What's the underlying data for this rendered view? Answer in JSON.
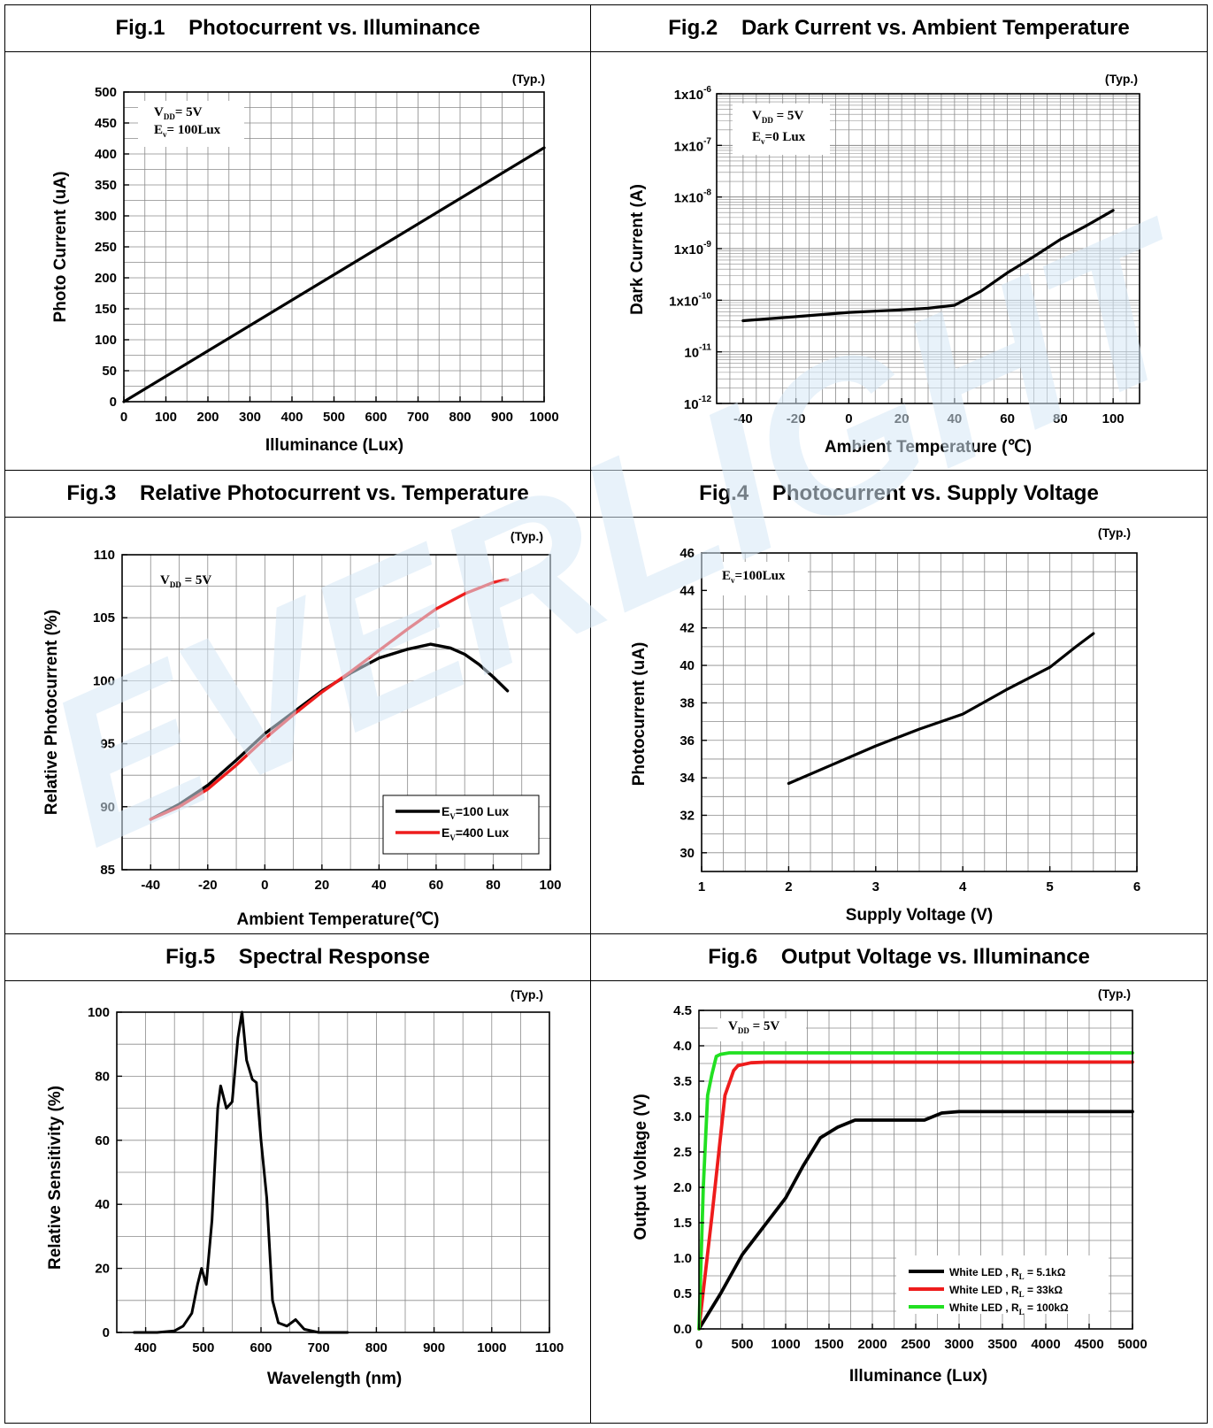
{
  "figures": [
    {
      "id": "fig1",
      "label": "Fig.1",
      "title": "Photocurrent vs. Illuminance"
    },
    {
      "id": "fig2",
      "label": "Fig.2",
      "title": "Dark Current vs. Ambient Temperature"
    },
    {
      "id": "fig3",
      "label": "Fig.3",
      "title": "Relative Photocurrent vs. Temperature"
    },
    {
      "id": "fig4",
      "label": "Fig.4",
      "title": "Photocurrent vs. Supply Voltage"
    },
    {
      "id": "fig5",
      "label": "Fig.5",
      "title": "Spectral Response"
    },
    {
      "id": "fig6",
      "label": "Fig.6",
      "title": "Output Voltage vs. Illuminance"
    }
  ],
  "typ_label": "(Typ.)",
  "watermark": "EVERLIGHT",
  "watermark_color": "#d6e8f5",
  "chart_data": [
    {
      "type": "line",
      "title": "Fig.1 Photocurrent vs. Illuminance",
      "xlabel": "Illuminance (Lux)",
      "ylabel": "Photo Current (uA)",
      "xlim": [
        0,
        1000
      ],
      "ylim": [
        0,
        500
      ],
      "xticks": [
        "0",
        "100",
        "200",
        "300",
        "400",
        "500",
        "600",
        "700",
        "800",
        "900",
        "1000"
      ],
      "yticks": [
        "0",
        "50",
        "100",
        "150",
        "200",
        "250",
        "300",
        "350",
        "400",
        "450",
        "500"
      ],
      "annotations": [
        {
          "main": "V",
          "sub": "DD",
          "rest": "= 5V"
        },
        {
          "main": "E",
          "sub": "v",
          "rest": "= 100Lux"
        }
      ],
      "grid": true,
      "series": [
        {
          "color": "#000000",
          "x": [
            0,
            1000
          ],
          "y": [
            0,
            410
          ]
        }
      ]
    },
    {
      "type": "line",
      "title": "Fig.2 Dark Current vs. Ambient Temperature",
      "xlabel": "Ambient Temperature (℃)",
      "ylabel": "Dark Current (A)",
      "yscale": "log",
      "xlim": [
        -50,
        110
      ],
      "ylim": [
        1e-12,
        1e-06
      ],
      "xticks": [
        "-40",
        "-20",
        "0",
        "20",
        "40",
        "60",
        "80",
        "100"
      ],
      "yticks": [
        {
          "base": "10",
          "exp": "-12"
        },
        {
          "base": "10",
          "exp": "-11"
        },
        {
          "base": "1x10",
          "exp": "-10"
        },
        {
          "base": "1x10",
          "exp": "-9"
        },
        {
          "base": "1x10",
          "exp": "-8"
        },
        {
          "base": "1x10",
          "exp": "-7"
        },
        {
          "base": "1x10",
          "exp": "-6"
        }
      ],
      "annotations": [
        {
          "main": "V",
          "sub": "DD",
          "rest": " = 5V"
        },
        {
          "main": "E",
          "sub": "v",
          "rest": "=0 Lux"
        }
      ],
      "grid": true,
      "series": [
        {
          "color": "#000000",
          "x": [
            -40,
            -20,
            0,
            20,
            30,
            40,
            50,
            60,
            70,
            80,
            90,
            100
          ],
          "y": [
            4e-11,
            4.8e-11,
            5.8e-11,
            6.5e-11,
            7e-11,
            8e-11,
            1.5e-10,
            3.4e-10,
            7e-10,
            1.5e-09,
            2.8e-09,
            5.5e-09
          ]
        }
      ]
    },
    {
      "type": "line",
      "title": "Fig.3 Relative Photocurrent vs. Temperature",
      "xlabel": "Ambient Temperature(℃)",
      "ylabel": "Relative Photocurrent (%)",
      "xlim": [
        -50,
        100
      ],
      "ylim": [
        85,
        110
      ],
      "xticks": [
        "-40",
        "-20",
        "0",
        "20",
        "40",
        "60",
        "80",
        "100"
      ],
      "yticks": [
        "85",
        "90",
        "95",
        "100",
        "105",
        "110"
      ],
      "annotations": [
        {
          "main": "V",
          "sub": "DD",
          "rest": " = 5V"
        }
      ],
      "grid": true,
      "legend": "bottom-right",
      "series": [
        {
          "name_main": "E",
          "name_sub": "V",
          "name_rest": "=100 Lux",
          "color": "#000000",
          "x": [
            -40,
            -30,
            -20,
            -10,
            0,
            10,
            20,
            30,
            40,
            50,
            58,
            65,
            70,
            75,
            80,
            85
          ],
          "y": [
            89.0,
            90.2,
            91.7,
            93.7,
            95.8,
            97.5,
            99.2,
            100.6,
            101.8,
            102.5,
            102.9,
            102.6,
            102.1,
            101.3,
            100.3,
            99.2
          ]
        },
        {
          "name_main": "E",
          "name_sub": "V",
          "name_rest": "=400 Lux",
          "color": "#ee1c1c",
          "x": [
            -40,
            -30,
            -20,
            -10,
            0,
            10,
            20,
            30,
            40,
            50,
            60,
            70,
            80,
            84,
            85
          ],
          "y": [
            89.0,
            90.0,
            91.4,
            93.3,
            95.4,
            97.3,
            99.1,
            100.7,
            102.4,
            104.1,
            105.7,
            106.9,
            107.8,
            108.0,
            108.0
          ]
        }
      ]
    },
    {
      "type": "line",
      "title": "Fig.4 Photocurrent vs. Supply Voltage",
      "xlabel": "Supply Voltage (V)",
      "ylabel": "Photocurrent (uA)",
      "xlim": [
        1,
        6
      ],
      "ylim": [
        29,
        46
      ],
      "xticks": [
        "1",
        "2",
        "3",
        "4",
        "5",
        "6"
      ],
      "yticks": [
        "30",
        "32",
        "34",
        "36",
        "38",
        "40",
        "42",
        "44",
        "46"
      ],
      "annotations": [
        {
          "main": "E",
          "sub": "v",
          "rest": "=100Lux"
        }
      ],
      "grid": true,
      "series": [
        {
          "color": "#000000",
          "x": [
            2.0,
            2.5,
            3.0,
            3.5,
            4.0,
            4.5,
            5.0,
            5.3,
            5.5
          ],
          "y": [
            33.7,
            34.7,
            35.7,
            36.6,
            37.4,
            38.7,
            39.9,
            41.0,
            41.7
          ]
        }
      ]
    },
    {
      "type": "line",
      "title": "Fig.5 Spectral Response",
      "xlabel": "Wavelength (nm)",
      "ylabel": "Relative Sensitivity (%)",
      "xlim": [
        350,
        1100
      ],
      "ylim": [
        0,
        100
      ],
      "xticks": [
        "400",
        "500",
        "600",
        "700",
        "800",
        "900",
        "1000",
        "1100"
      ],
      "yticks": [
        "0",
        "20",
        "40",
        "60",
        "80",
        "100"
      ],
      "grid": true,
      "series": [
        {
          "color": "#000000",
          "x": [
            380,
            420,
            450,
            465,
            480,
            490,
            497,
            505,
            515,
            525,
            530,
            540,
            550,
            560,
            567,
            575,
            585,
            592,
            600,
            610,
            620,
            630,
            645,
            660,
            675,
            700,
            750
          ],
          "y": [
            0,
            0,
            0.5,
            2,
            6,
            15,
            20,
            15,
            35,
            70,
            77,
            70,
            72,
            92,
            100,
            85,
            79,
            78,
            60,
            42,
            10,
            3,
            2,
            4,
            1,
            0,
            0
          ]
        }
      ]
    },
    {
      "type": "line",
      "title": "Fig.6 Output Voltage vs. Illuminance",
      "xlabel": "Illuminance (Lux)",
      "ylabel": "Output Voltage (V)",
      "xlim": [
        0,
        5000
      ],
      "ylim": [
        0,
        4.5
      ],
      "xticks": [
        "0",
        "500",
        "1000",
        "1500",
        "2000",
        "2500",
        "3000",
        "3500",
        "4000",
        "4500",
        "5000"
      ],
      "yticks": [
        "0.0",
        "0.5",
        "1.0",
        "1.5",
        "2.0",
        "2.5",
        "3.0",
        "3.5",
        "4.0",
        "4.5"
      ],
      "annotations": [
        {
          "main": "V",
          "sub": "DD",
          "rest": " = 5V"
        }
      ],
      "grid": true,
      "legend": "bottom-right",
      "series": [
        {
          "name_main": "White LED , R",
          "name_sub": "L",
          "name_rest": " = 5.1kΩ",
          "color": "#000000",
          "x": [
            0,
            250,
            500,
            750,
            1000,
            1200,
            1400,
            1600,
            1800,
            2000,
            2200,
            2400,
            2600,
            2800,
            3000,
            5000
          ],
          "y": [
            0,
            0.5,
            1.05,
            1.45,
            1.85,
            2.3,
            2.7,
            2.85,
            2.95,
            2.95,
            2.95,
            2.95,
            2.95,
            3.05,
            3.07,
            3.07
          ]
        },
        {
          "name_main": "White LED , R",
          "name_sub": "L",
          "name_rest": " = 33kΩ",
          "color": "#ee1c1c",
          "x": [
            0,
            150,
            300,
            400,
            450,
            600,
            800,
            5000
          ],
          "y": [
            0,
            1.6,
            3.3,
            3.65,
            3.72,
            3.76,
            3.77,
            3.77
          ]
        },
        {
          "name_main": "White LED , R",
          "name_sub": "L",
          "name_rest": " = 100kΩ",
          "color": "#22e022",
          "x": [
            0,
            50,
            100,
            150,
            200,
            250,
            350,
            500,
            5000
          ],
          "y": [
            0,
            2.0,
            3.3,
            3.6,
            3.85,
            3.88,
            3.9,
            3.9,
            3.9
          ]
        }
      ]
    }
  ]
}
